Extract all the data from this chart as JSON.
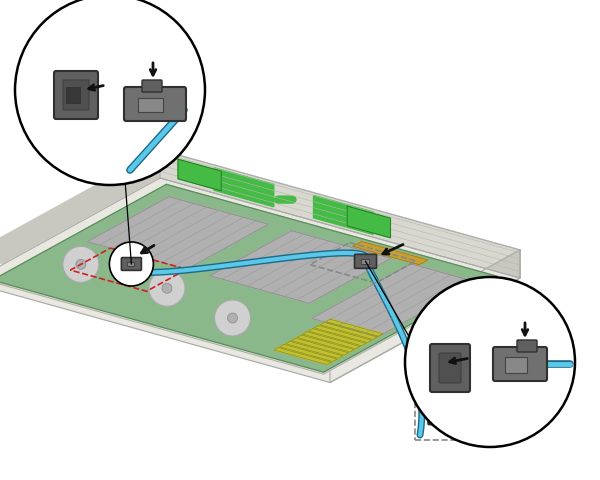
{
  "background_color": "#ffffff",
  "fig_width": 6.0,
  "fig_height": 4.8,
  "dpi": 100,
  "cable_color": "#5bc8e8",
  "cable_dark": "#1a6a8a",
  "cable_mid": "#3a9ab8",
  "connector_color": "#606060",
  "connector_dark": "#303030",
  "connector_mid": "#808080",
  "arrow_color": "#111111",
  "pcb_green": "#8ab88a",
  "pcb_edge": "#5a8a5a",
  "chassis_top": "#e8e8e0",
  "chassis_side": "#c8c8c0",
  "chassis_front": "#d8d8d0",
  "chassis_edge": "#aaaaaa",
  "yellow_card": "#c8a030",
  "heatsink_color": "#b0b0b0",
  "memory_color": "#c8c840",
  "green_handle": "#44bb44"
}
